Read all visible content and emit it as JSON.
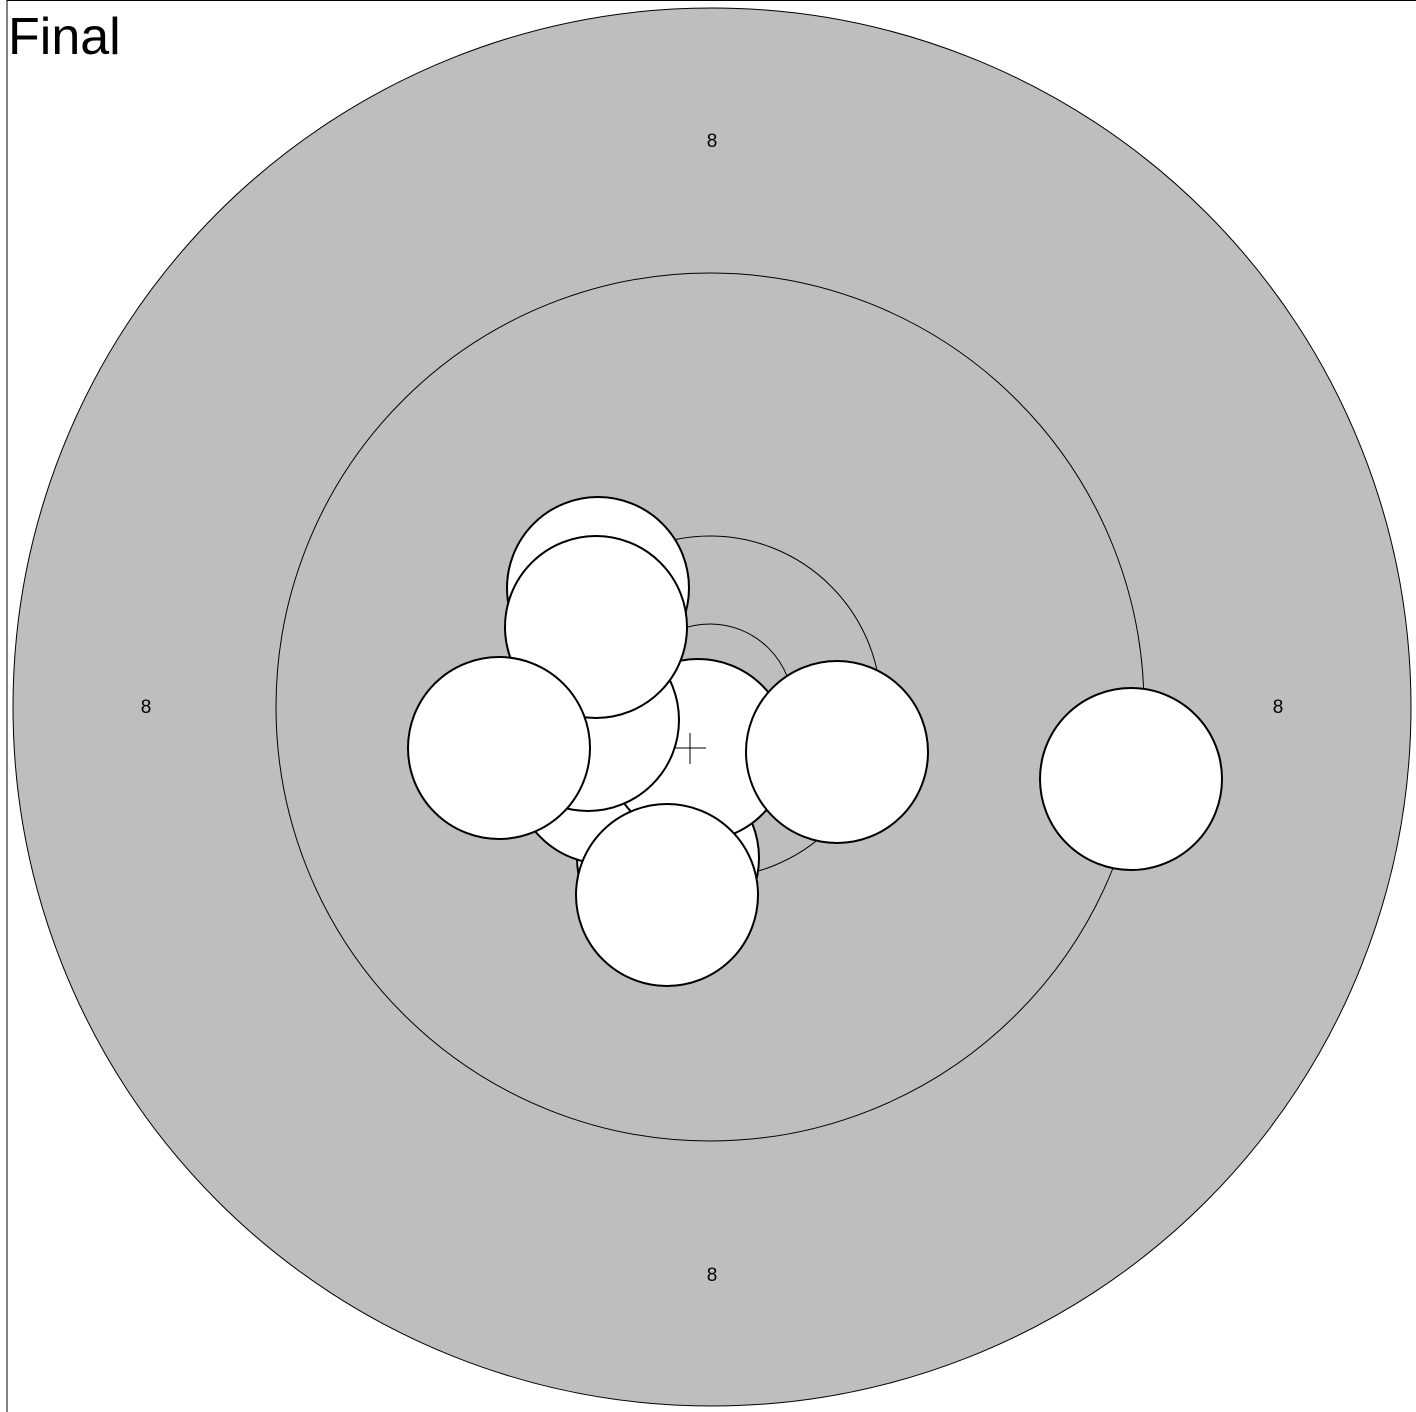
{
  "title": "Final",
  "target": {
    "colors": {
      "face": "#bebebe",
      "line": "#000000",
      "shot_fill": "#ffffff",
      "background": "#ffffff"
    },
    "ring_labels": [
      {
        "id": "top",
        "text": "8"
      },
      {
        "id": "left",
        "text": "8"
      },
      {
        "id": "right",
        "text": "8"
      },
      {
        "id": "bottom",
        "text": "8"
      }
    ],
    "shot_count": 9,
    "icons": {
      "crosshair": "crosshair-icon"
    }
  }
}
